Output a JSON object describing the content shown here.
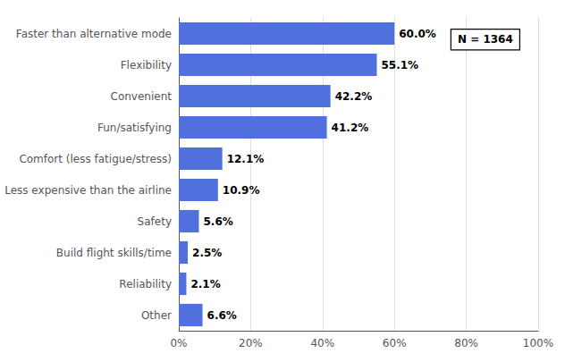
{
  "chart_data": {
    "type": "bar",
    "orientation": "horizontal",
    "categories": [
      "Other",
      "Reliability",
      "Build flight skills/time",
      "Safety",
      "Less expensive than the airline",
      "Comfort (less fatigue/stress)",
      "Fun/satisfying",
      "Convenient",
      "Flexibility",
      "Faster than alternative mode"
    ],
    "values": [
      6.6,
      2.1,
      2.5,
      5.6,
      10.9,
      12.1,
      41.2,
      42.2,
      55.1,
      60.0
    ],
    "value_labels": [
      "6.6%",
      "2.1%",
      "2.5%",
      "5.6%",
      "10.9%",
      "12.1%",
      "41.2%",
      "42.2%",
      "55.1%",
      "60.0%"
    ],
    "data_labels": true,
    "xlim": [
      0,
      100
    ],
    "xticks": [
      {
        "value": 0,
        "label": "0%"
      },
      {
        "value": 20,
        "label": "20%"
      },
      {
        "value": 40,
        "label": "40%"
      },
      {
        "value": 60,
        "label": "60%"
      },
      {
        "value": 80,
        "label": "80%"
      },
      {
        "value": 100,
        "label": "100%"
      }
    ],
    "grid": true,
    "annotation": "N = 1364"
  }
}
